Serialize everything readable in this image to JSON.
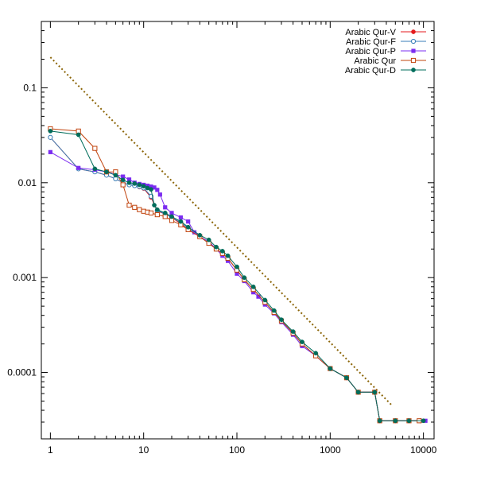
{
  "chart_data": {
    "type": "scatter",
    "title": "",
    "xlabel": "",
    "ylabel": "",
    "xscale": "log",
    "yscale": "log",
    "xlim": [
      0.8,
      13000
    ],
    "ylim": [
      2e-05,
      0.5
    ],
    "grid": false,
    "legend_position": "top-right",
    "x_ticks": [
      {
        "value": 1,
        "label": "1"
      },
      {
        "value": 10,
        "label": "10"
      },
      {
        "value": 100,
        "label": "100"
      },
      {
        "value": 1000,
        "label": "1000"
      },
      {
        "value": 10000,
        "label": "10000"
      }
    ],
    "y_ticks": [
      {
        "value": 0.1,
        "label": "0.1"
      },
      {
        "value": 0.01,
        "label": "0.01"
      },
      {
        "value": 0.001,
        "label": "0.001"
      },
      {
        "value": 0.0001,
        "label": "0.0001"
      }
    ],
    "reference_line": {
      "name": "",
      "color": "#8b6508",
      "style": "dotted",
      "points": [
        [
          1,
          0.21
        ],
        [
          4500,
          4.6e-05
        ]
      ]
    },
    "series": [
      {
        "name": "Arabic Qur-V",
        "color": "#e41a1c",
        "marker": "filled-circle",
        "points": [
          [
            1,
            0.03
          ],
          [
            2,
            0.014
          ],
          [
            3,
            0.013
          ],
          [
            4,
            0.012
          ],
          [
            5,
            0.011
          ],
          [
            6,
            0.01
          ],
          [
            7,
            0.0095
          ],
          [
            8,
            0.0093
          ],
          [
            9,
            0.009
          ],
          [
            10,
            0.0087
          ],
          [
            12,
            0.007
          ],
          [
            14,
            0.005
          ],
          [
            17,
            0.0047
          ],
          [
            20,
            0.0043
          ],
          [
            25,
            0.0037
          ],
          [
            30,
            0.0032
          ],
          [
            40,
            0.0027
          ],
          [
            50,
            0.0023
          ],
          [
            60,
            0.002
          ],
          [
            70,
            0.0018
          ],
          [
            80,
            0.0016
          ],
          [
            100,
            0.0012
          ],
          [
            120,
            0.00095
          ],
          [
            150,
            0.00075
          ],
          [
            200,
            0.00055
          ],
          [
            250,
            0.00043
          ],
          [
            300,
            0.00035
          ],
          [
            400,
            0.00026
          ],
          [
            500,
            0.0002
          ],
          [
            700,
            0.00015
          ],
          [
            1000,
            0.00011
          ],
          [
            1500,
            8.8e-05
          ],
          [
            2000,
            6.2e-05
          ],
          [
            3000,
            6.2e-05
          ],
          [
            3400,
            3.1e-05
          ],
          [
            5000,
            3.1e-05
          ],
          [
            7000,
            3.1e-05
          ],
          [
            9300,
            3.1e-05
          ]
        ]
      },
      {
        "name": "Arabic Qur-F",
        "color": "#377eb8",
        "marker": "open-circle",
        "points": [
          [
            1,
            0.03
          ],
          [
            2,
            0.014
          ],
          [
            3,
            0.013
          ],
          [
            4,
            0.012
          ],
          [
            5,
            0.011
          ],
          [
            6,
            0.01
          ],
          [
            7,
            0.0095
          ],
          [
            8,
            0.0093
          ],
          [
            9,
            0.0091
          ],
          [
            10,
            0.0088
          ],
          [
            12,
            0.0072
          ],
          [
            14,
            0.0051
          ],
          [
            17,
            0.0047
          ],
          [
            20,
            0.0043
          ],
          [
            25,
            0.0038
          ],
          [
            30,
            0.0033
          ],
          [
            40,
            0.0027
          ],
          [
            50,
            0.0023
          ],
          [
            60,
            0.002
          ],
          [
            70,
            0.0018
          ],
          [
            80,
            0.0016
          ],
          [
            100,
            0.0012
          ],
          [
            120,
            0.00095
          ],
          [
            150,
            0.00075
          ],
          [
            200,
            0.00055
          ],
          [
            250,
            0.00043
          ],
          [
            300,
            0.00035
          ],
          [
            400,
            0.00026
          ],
          [
            500,
            0.0002
          ],
          [
            700,
            0.00015
          ],
          [
            1000,
            0.00011
          ],
          [
            1500,
            8.8e-05
          ],
          [
            2000,
            6.2e-05
          ],
          [
            3000,
            6.2e-05
          ],
          [
            3400,
            3.1e-05
          ],
          [
            5000,
            3.1e-05
          ],
          [
            7000,
            3.1e-05
          ],
          [
            9300,
            3.1e-05
          ]
        ]
      },
      {
        "name": "Arabic Qur-P",
        "color": "#7b2cf0",
        "marker": "filled-square",
        "points": [
          [
            1,
            0.021
          ],
          [
            2,
            0.0143
          ],
          [
            3,
            0.0137
          ],
          [
            4,
            0.013
          ],
          [
            5,
            0.0122
          ],
          [
            6,
            0.0116
          ],
          [
            7,
            0.0108
          ],
          [
            8,
            0.01
          ],
          [
            9,
            0.0097
          ],
          [
            10,
            0.0095
          ],
          [
            11,
            0.0093
          ],
          [
            12,
            0.0091
          ],
          [
            13,
            0.0089
          ],
          [
            14,
            0.0084
          ],
          [
            15,
            0.0075
          ],
          [
            17,
            0.0055
          ],
          [
            20,
            0.0048
          ],
          [
            25,
            0.0043
          ],
          [
            30,
            0.0039
          ],
          [
            35,
            0.003
          ],
          [
            40,
            0.0027
          ],
          [
            50,
            0.0024
          ],
          [
            60,
            0.002
          ],
          [
            70,
            0.0017
          ],
          [
            80,
            0.0015
          ],
          [
            100,
            0.0011
          ],
          [
            120,
            0.00092
          ],
          [
            150,
            0.0007
          ],
          [
            170,
            0.00063
          ],
          [
            200,
            0.00052
          ],
          [
            250,
            0.00042
          ],
          [
            300,
            0.00034
          ],
          [
            400,
            0.00025
          ],
          [
            500,
            0.00019
          ],
          [
            700,
            0.00015
          ],
          [
            1000,
            0.00011
          ],
          [
            1500,
            8.8e-05
          ],
          [
            2000,
            6.2e-05
          ],
          [
            3000,
            6.2e-05
          ],
          [
            3400,
            3.1e-05
          ],
          [
            5000,
            3.1e-05
          ],
          [
            7000,
            3.1e-05
          ],
          [
            10500,
            3.1e-05
          ]
        ]
      },
      {
        "name": "Arabic Qur",
        "color": "#c1440e",
        "marker": "open-square",
        "points": [
          [
            1,
            0.037
          ],
          [
            2,
            0.035
          ],
          [
            3,
            0.023
          ],
          [
            4,
            0.013
          ],
          [
            5,
            0.013
          ],
          [
            6,
            0.0095
          ],
          [
            7,
            0.0058
          ],
          [
            8,
            0.0055
          ],
          [
            9,
            0.0052
          ],
          [
            10,
            0.005
          ],
          [
            11,
            0.0049
          ],
          [
            12,
            0.0048
          ],
          [
            14,
            0.0046
          ],
          [
            17,
            0.0044
          ],
          [
            20,
            0.004
          ],
          [
            25,
            0.0036
          ],
          [
            30,
            0.0032
          ],
          [
            40,
            0.0027
          ],
          [
            50,
            0.0023
          ],
          [
            60,
            0.002
          ],
          [
            70,
            0.0018
          ],
          [
            80,
            0.0016
          ],
          [
            100,
            0.0012
          ],
          [
            120,
            0.00095
          ],
          [
            150,
            0.00075
          ],
          [
            200,
            0.00055
          ],
          [
            250,
            0.00043
          ],
          [
            300,
            0.00035
          ],
          [
            400,
            0.00026
          ],
          [
            500,
            0.0002
          ],
          [
            700,
            0.00015
          ],
          [
            1000,
            0.00011
          ],
          [
            1500,
            8.8e-05
          ],
          [
            2000,
            6.2e-05
          ],
          [
            3000,
            6.2e-05
          ],
          [
            3400,
            3.1e-05
          ],
          [
            5000,
            3.1e-05
          ],
          [
            7000,
            3.1e-05
          ],
          [
            9000,
            3.1e-05
          ]
        ]
      },
      {
        "name": "Arabic Qur-D",
        "color": "#006d5b",
        "marker": "filled-circle",
        "points": [
          [
            1,
            0.035
          ],
          [
            2,
            0.032
          ],
          [
            3,
            0.014
          ],
          [
            4,
            0.013
          ],
          [
            5,
            0.012
          ],
          [
            6,
            0.0107
          ],
          [
            7,
            0.01
          ],
          [
            8,
            0.0098
          ],
          [
            9,
            0.0095
          ],
          [
            10,
            0.0092
          ],
          [
            11,
            0.0088
          ],
          [
            12,
            0.0085
          ],
          [
            13,
            0.0058
          ],
          [
            14,
            0.0052
          ],
          [
            17,
            0.0048
          ],
          [
            20,
            0.0044
          ],
          [
            25,
            0.0039
          ],
          [
            30,
            0.0034
          ],
          [
            40,
            0.0028
          ],
          [
            50,
            0.0025
          ],
          [
            60,
            0.0021
          ],
          [
            70,
            0.0019
          ],
          [
            80,
            0.0017
          ],
          [
            100,
            0.0013
          ],
          [
            120,
            0.001
          ],
          [
            150,
            0.0008
          ],
          [
            200,
            0.00058
          ],
          [
            250,
            0.00045
          ],
          [
            300,
            0.00036
          ],
          [
            400,
            0.00027
          ],
          [
            500,
            0.00021
          ],
          [
            700,
            0.00016
          ],
          [
            1000,
            0.00011
          ],
          [
            1500,
            8.8e-05
          ],
          [
            2000,
            6.2e-05
          ],
          [
            3000,
            6.2e-05
          ],
          [
            3400,
            3.1e-05
          ],
          [
            5000,
            3.1e-05
          ],
          [
            7000,
            3.1e-05
          ],
          [
            10000,
            3.1e-05
          ]
        ]
      }
    ]
  }
}
